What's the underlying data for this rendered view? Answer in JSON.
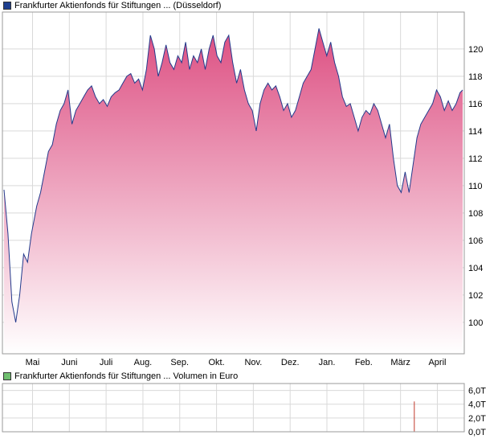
{
  "price_panel": {
    "legend": "Frankfurter Aktienfonds für Stiftungen ... (Düsseldorf)",
    "legend_color": "#1e3f8f"
  },
  "volume_panel": {
    "legend": "Frankfurter Aktienfonds für Stiftungen ... Volumen in Euro",
    "legend_color": "#6fbf6f"
  },
  "colors": {
    "line": "#233a8c",
    "area_top": "#dd4f82",
    "area_bottom": "#ffffff",
    "grid": "#d9d9d9",
    "frame": "#9a9a9a",
    "volume_bar": "#c0392b"
  },
  "chart_data": [
    {
      "type": "area",
      "x_axis": {
        "tick_labels": [
          "Mai",
          "Juni",
          "Juli",
          "Aug.",
          "Sep.",
          "Okt.",
          "Nov.",
          "Dez.",
          "Jan.",
          "Feb.",
          "März",
          "April"
        ]
      },
      "y_axis": {
        "ylim": [
          97.7,
          122.7
        ],
        "tick_values": [
          100,
          102,
          104,
          106,
          108,
          110,
          112,
          114,
          116,
          118,
          120
        ],
        "position": "right"
      },
      "grid": true,
      "series": [
        {
          "x": [
            0,
            3,
            6,
            9,
            12,
            15,
            18,
            21,
            25,
            28,
            31,
            34,
            37,
            40,
            43,
            46,
            49,
            52,
            55,
            58,
            61,
            64,
            67,
            70,
            73,
            76,
            79,
            82,
            85,
            88,
            91,
            94,
            97,
            100,
            103,
            106,
            109,
            112,
            115,
            118,
            121,
            124,
            127,
            130,
            133,
            136,
            139,
            142,
            145,
            148,
            151,
            154,
            157,
            160,
            163,
            166,
            169,
            172,
            175,
            178,
            181,
            184,
            187,
            190,
            193,
            196,
            199,
            202,
            205,
            208,
            211,
            214,
            217,
            220,
            223,
            226,
            229,
            232,
            235,
            238,
            241,
            244,
            247,
            250,
            253,
            256,
            259,
            262,
            265,
            268,
            271,
            274,
            277,
            280,
            283,
            286,
            289,
            292,
            295,
            298,
            301,
            304,
            307,
            310,
            313,
            316,
            319,
            322,
            325,
            328,
            331,
            334,
            337,
            340,
            343,
            346,
            349,
            351
          ],
          "values": [
            109.7,
            106.5,
            101.5,
            100.0,
            102.0,
            105.0,
            104.4,
            106.5,
            108.5,
            109.5,
            111.0,
            112.5,
            113.0,
            114.5,
            115.5,
            116.0,
            117.0,
            114.5,
            115.5,
            116.0,
            116.5,
            117.0,
            117.3,
            116.5,
            116.0,
            116.3,
            115.8,
            116.5,
            116.8,
            117.0,
            117.5,
            118.0,
            118.2,
            117.5,
            117.8,
            117.0,
            118.5,
            121.0,
            120.0,
            118.0,
            119.0,
            120.3,
            119.0,
            118.5,
            119.5,
            119.0,
            120.5,
            118.5,
            119.5,
            119.0,
            120.0,
            118.5,
            120.0,
            121.0,
            119.5,
            119.0,
            120.5,
            121.0,
            119.0,
            117.5,
            118.5,
            117.0,
            116.0,
            115.5,
            114.0,
            116.0,
            117.0,
            117.5,
            117.0,
            117.3,
            116.5,
            115.5,
            116.0,
            115.0,
            115.5,
            116.5,
            117.5,
            118.0,
            118.5,
            120.0,
            121.5,
            120.5,
            119.5,
            120.5,
            119.0,
            118.0,
            116.5,
            115.8,
            116.0,
            115.0,
            114.0,
            115.0,
            115.5,
            115.2,
            116.0,
            115.5,
            114.5,
            113.5,
            114.5,
            112.0,
            110.0,
            109.5,
            111.0,
            109.5,
            111.5,
            113.5,
            114.5,
            115.0,
            115.5,
            116.0,
            117.0,
            116.5,
            115.5,
            116.2,
            115.5,
            116.0,
            116.8,
            117.0
          ]
        }
      ]
    },
    {
      "type": "bar",
      "y_axis": {
        "ylim": [
          0,
          7.0
        ],
        "tick_labels": [
          "0,0T",
          "2,0T",
          "4,0T",
          "6,0T"
        ],
        "tick_values": [
          0,
          2,
          4,
          6
        ],
        "position": "right"
      },
      "grid": true,
      "series": [
        {
          "x": [
            314
          ],
          "values": [
            4.4
          ]
        }
      ]
    }
  ]
}
